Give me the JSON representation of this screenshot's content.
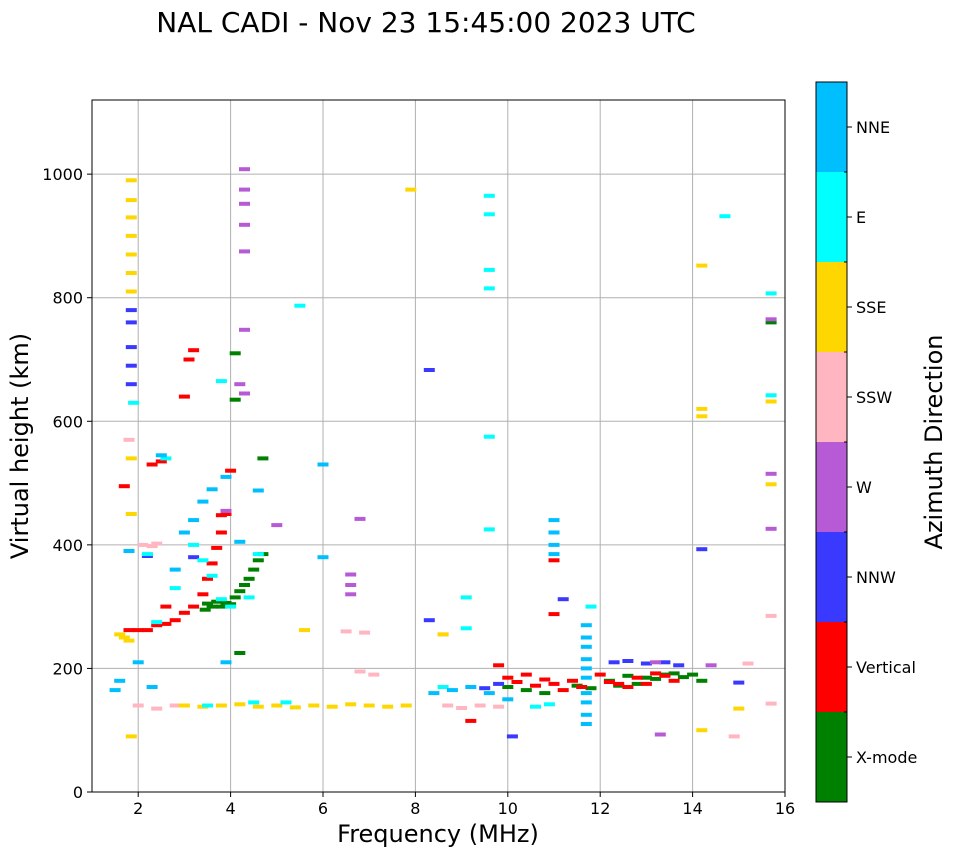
{
  "chart_data": {
    "type": "scatter",
    "title": "NAL CADI - Nov 23 15:45:00 2023 UTC",
    "xlabel": "Frequency (MHz)",
    "ylabel": "Virtual height (km)",
    "xlim": [
      1,
      16
    ],
    "ylim": [
      0,
      1120
    ],
    "xticks": [
      2,
      4,
      6,
      8,
      10,
      12,
      14,
      16
    ],
    "yticks": [
      0,
      200,
      400,
      600,
      800,
      1000
    ],
    "grid": true,
    "colorbar": {
      "label": "Azimuth Direction",
      "categories": [
        "X-mode",
        "Vertical",
        "NNW",
        "W",
        "SSW",
        "SSE",
        "E",
        "NNE"
      ],
      "colors": [
        "#008000",
        "#ff0000",
        "#3a3aff",
        "#b65ad6",
        "#ffb6c1",
        "#ffd700",
        "#00ffff",
        "#00bfff"
      ]
    },
    "series": [
      {
        "name": "X-mode",
        "points": [
          [
            3.5,
            305
          ],
          [
            3.6,
            300
          ],
          [
            3.7,
            308
          ],
          [
            3.8,
            300
          ],
          [
            3.9,
            306
          ],
          [
            4.0,
            304
          ],
          [
            4.1,
            315
          ],
          [
            4.2,
            325
          ],
          [
            4.3,
            335
          ],
          [
            4.4,
            345
          ],
          [
            4.5,
            360
          ],
          [
            4.6,
            375
          ],
          [
            4.7,
            385
          ],
          [
            3.45,
            295
          ],
          [
            4.2,
            225
          ],
          [
            4.1,
            710
          ],
          [
            4.1,
            635
          ],
          [
            4.7,
            540
          ],
          [
            11.5,
            172
          ],
          [
            11.8,
            168
          ],
          [
            12.2,
            180
          ],
          [
            12.4,
            172
          ],
          [
            12.6,
            188
          ],
          [
            12.8,
            175
          ],
          [
            13.0,
            185
          ],
          [
            13.2,
            183
          ],
          [
            13.4,
            190
          ],
          [
            13.6,
            192
          ],
          [
            13.8,
            186
          ],
          [
            14.0,
            190
          ],
          [
            14.2,
            180
          ],
          [
            15.7,
            760
          ],
          [
            10.0,
            170
          ],
          [
            10.4,
            165
          ],
          [
            10.8,
            160
          ]
        ]
      },
      {
        "name": "Vertical",
        "points": [
          [
            1.8,
            262
          ],
          [
            2.0,
            262
          ],
          [
            2.2,
            262
          ],
          [
            2.4,
            270
          ],
          [
            2.6,
            272
          ],
          [
            2.8,
            278
          ],
          [
            3.0,
            290
          ],
          [
            3.2,
            300
          ],
          [
            3.4,
            320
          ],
          [
            3.5,
            345
          ],
          [
            3.6,
            370
          ],
          [
            3.7,
            395
          ],
          [
            3.8,
            420
          ],
          [
            3.9,
            450
          ],
          [
            4.0,
            520
          ],
          [
            3.1,
            700
          ],
          [
            3.2,
            715
          ],
          [
            2.3,
            530
          ],
          [
            2.5,
            535
          ],
          [
            1.7,
            495
          ],
          [
            10.0,
            185
          ],
          [
            10.2,
            178
          ],
          [
            10.4,
            190
          ],
          [
            10.6,
            172
          ],
          [
            10.8,
            182
          ],
          [
            11.0,
            175
          ],
          [
            11.2,
            165
          ],
          [
            11.4,
            180
          ],
          [
            11.6,
            170
          ],
          [
            12.0,
            190
          ],
          [
            12.2,
            178
          ],
          [
            12.4,
            175
          ],
          [
            12.6,
            170
          ],
          [
            12.8,
            185
          ],
          [
            13.0,
            175
          ],
          [
            13.2,
            192
          ],
          [
            13.4,
            188
          ],
          [
            13.6,
            180
          ],
          [
            9.2,
            115
          ],
          [
            9.8,
            205
          ],
          [
            11.0,
            288
          ],
          [
            11.0,
            375
          ],
          [
            3.0,
            640
          ],
          [
            2.6,
            300
          ],
          [
            3.8,
            448
          ]
        ]
      },
      {
        "name": "NNW",
        "points": [
          [
            1.85,
            780
          ],
          [
            1.85,
            760
          ],
          [
            1.85,
            720
          ],
          [
            1.85,
            690
          ],
          [
            1.85,
            660
          ],
          [
            8.3,
            683
          ],
          [
            8.3,
            278
          ],
          [
            11.2,
            312
          ],
          [
            14.2,
            393
          ],
          [
            15.0,
            177
          ],
          [
            10.1,
            90
          ],
          [
            12.3,
            210
          ],
          [
            12.6,
            212
          ],
          [
            13.0,
            208
          ],
          [
            13.4,
            210
          ],
          [
            13.7,
            205
          ],
          [
            3.2,
            380
          ],
          [
            2.2,
            382
          ],
          [
            9.5,
            168
          ],
          [
            9.8,
            175
          ]
        ]
      },
      {
        "name": "W",
        "points": [
          [
            4.3,
            1008
          ],
          [
            4.3,
            975
          ],
          [
            4.3,
            952
          ],
          [
            4.3,
            918
          ],
          [
            4.3,
            875
          ],
          [
            4.3,
            748
          ],
          [
            4.2,
            660
          ],
          [
            4.3,
            645
          ],
          [
            6.8,
            442
          ],
          [
            6.6,
            352
          ],
          [
            6.6,
            335
          ],
          [
            6.6,
            320
          ],
          [
            14.4,
            205
          ],
          [
            13.3,
            93
          ],
          [
            13.2,
            210
          ],
          [
            15.7,
            515
          ],
          [
            15.7,
            426
          ],
          [
            15.7,
            765
          ],
          [
            5.0,
            432
          ],
          [
            3.9,
            455
          ]
        ]
      },
      {
        "name": "SSW",
        "points": [
          [
            1.8,
            570
          ],
          [
            2.1,
            400
          ],
          [
            2.3,
            398
          ],
          [
            2.4,
            402
          ],
          [
            8.6,
            255
          ],
          [
            6.5,
            260
          ],
          [
            6.9,
            258
          ],
          [
            15.7,
            285
          ],
          [
            15.7,
            143
          ],
          [
            15.2,
            208
          ],
          [
            14.9,
            90
          ],
          [
            2.0,
            140
          ],
          [
            2.4,
            135
          ],
          [
            2.8,
            140
          ],
          [
            8.7,
            140
          ],
          [
            9.0,
            136
          ],
          [
            9.4,
            140
          ],
          [
            9.8,
            138
          ],
          [
            6.8,
            195
          ],
          [
            7.1,
            190
          ]
        ]
      },
      {
        "name": "SSE",
        "points": [
          [
            1.85,
            990
          ],
          [
            1.85,
            958
          ],
          [
            1.85,
            930
          ],
          [
            1.85,
            900
          ],
          [
            1.85,
            870
          ],
          [
            1.85,
            840
          ],
          [
            1.85,
            810
          ],
          [
            1.85,
            540
          ],
          [
            1.85,
            450
          ],
          [
            1.6,
            255
          ],
          [
            1.7,
            250
          ],
          [
            1.8,
            245
          ],
          [
            3.0,
            140
          ],
          [
            3.4,
            138
          ],
          [
            3.8,
            140
          ],
          [
            4.2,
            142
          ],
          [
            4.6,
            138
          ],
          [
            5.0,
            140
          ],
          [
            5.4,
            137
          ],
          [
            5.8,
            140
          ],
          [
            6.2,
            138
          ],
          [
            6.6,
            142
          ],
          [
            7.0,
            140
          ],
          [
            7.4,
            138
          ],
          [
            7.8,
            140
          ],
          [
            8.6,
            255
          ],
          [
            14.2,
            852
          ],
          [
            14.2,
            620
          ],
          [
            14.2,
            608
          ],
          [
            14.2,
            100
          ],
          [
            15.0,
            135
          ],
          [
            15.7,
            632
          ],
          [
            15.7,
            498
          ],
          [
            7.9,
            975
          ],
          [
            5.6,
            262
          ],
          [
            1.85,
            90
          ]
        ]
      },
      {
        "name": "E",
        "points": [
          [
            1.9,
            630
          ],
          [
            2.2,
            385
          ],
          [
            2.4,
            275
          ],
          [
            2.6,
            540
          ],
          [
            2.8,
            330
          ],
          [
            3.2,
            400
          ],
          [
            3.4,
            375
          ],
          [
            3.6,
            350
          ],
          [
            3.8,
            312
          ],
          [
            4.0,
            300
          ],
          [
            4.4,
            315
          ],
          [
            4.6,
            385
          ],
          [
            3.8,
            665
          ],
          [
            9.6,
            965
          ],
          [
            9.6,
            935
          ],
          [
            9.6,
            845
          ],
          [
            9.6,
            815
          ],
          [
            9.6,
            575
          ],
          [
            9.6,
            425
          ],
          [
            5.5,
            787
          ],
          [
            11.8,
            300
          ],
          [
            14.7,
            932
          ],
          [
            15.7,
            807
          ],
          [
            15.7,
            642
          ],
          [
            9.1,
            315
          ],
          [
            9.1,
            265
          ],
          [
            3.5,
            140
          ],
          [
            4.5,
            145
          ],
          [
            5.2,
            145
          ],
          [
            10.6,
            138
          ],
          [
            10.9,
            142
          ],
          [
            8.6,
            170
          ]
        ]
      },
      {
        "name": "NNE",
        "points": [
          [
            1.8,
            390
          ],
          [
            2.0,
            210
          ],
          [
            2.5,
            545
          ],
          [
            2.8,
            360
          ],
          [
            3.0,
            420
          ],
          [
            3.2,
            440
          ],
          [
            3.4,
            470
          ],
          [
            3.6,
            490
          ],
          [
            3.9,
            510
          ],
          [
            4.2,
            405
          ],
          [
            4.6,
            488
          ],
          [
            6.0,
            530
          ],
          [
            6.0,
            380
          ],
          [
            11.0,
            440
          ],
          [
            11.0,
            420
          ],
          [
            11.0,
            400
          ],
          [
            11.0,
            385
          ],
          [
            11.7,
            270
          ],
          [
            11.7,
            250
          ],
          [
            11.7,
            235
          ],
          [
            11.7,
            215
          ],
          [
            11.7,
            200
          ],
          [
            11.7,
            185
          ],
          [
            11.7,
            160
          ],
          [
            11.7,
            145
          ],
          [
            11.7,
            125
          ],
          [
            11.7,
            110
          ],
          [
            8.4,
            160
          ],
          [
            8.8,
            165
          ],
          [
            9.2,
            170
          ],
          [
            9.6,
            160
          ],
          [
            10.0,
            150
          ],
          [
            1.6,
            180
          ],
          [
            1.5,
            165
          ],
          [
            3.9,
            210
          ],
          [
            2.3,
            170
          ]
        ]
      }
    ]
  }
}
